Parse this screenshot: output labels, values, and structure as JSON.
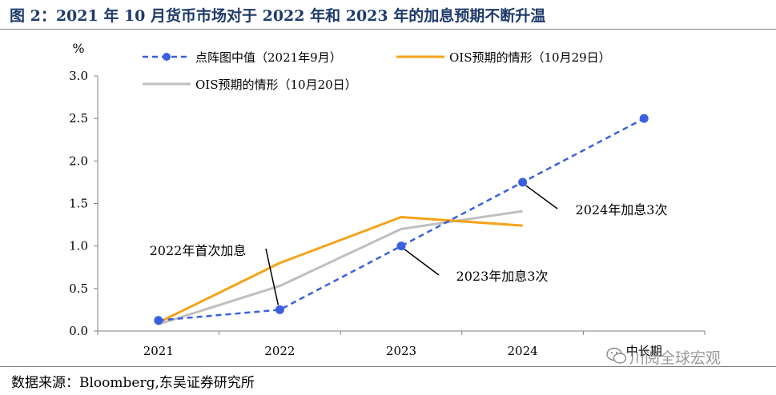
{
  "title": "图 2：2021 年 10 月货币市场对于 2022 年和 2023 年的加息预期不断升温",
  "source": "数据来源：Bloomberg,东吴证券研究所",
  "watermark": "川阅全球宏观",
  "chart_data": {
    "type": "line",
    "unit_label": "%",
    "categories": [
      "2021",
      "2022",
      "2023",
      "2024",
      "中长期"
    ],
    "ylim": [
      0,
      3.0
    ],
    "yticks": [
      "0.0",
      "0.5",
      "1.0",
      "1.5",
      "2.0",
      "2.5",
      "3.0"
    ],
    "grid": false,
    "legend_position": "top",
    "series": [
      {
        "name": "点阵图中值（2021年9月）",
        "color": "#3a60e0",
        "style": "dashed-markers",
        "values": [
          0.125,
          0.25,
          1.0,
          1.75,
          2.5
        ]
      },
      {
        "name": "OIS预期的情形（10月29日）",
        "color": "#f5a31a",
        "style": "solid",
        "values": [
          0.1,
          0.8,
          1.34,
          1.24,
          null
        ]
      },
      {
        "name": "OIS预期的情形（10月20日）",
        "color": "#bfbfbf",
        "style": "solid",
        "values": [
          0.08,
          0.53,
          1.2,
          1.41,
          null
        ]
      }
    ],
    "annotations": [
      {
        "text": "2022年首次加息",
        "category": "2022",
        "series": 0
      },
      {
        "text": "2023年加息3次",
        "category": "2023",
        "series": 0
      },
      {
        "text": "2024年加息3次",
        "category": "2024",
        "series": 0
      }
    ]
  }
}
